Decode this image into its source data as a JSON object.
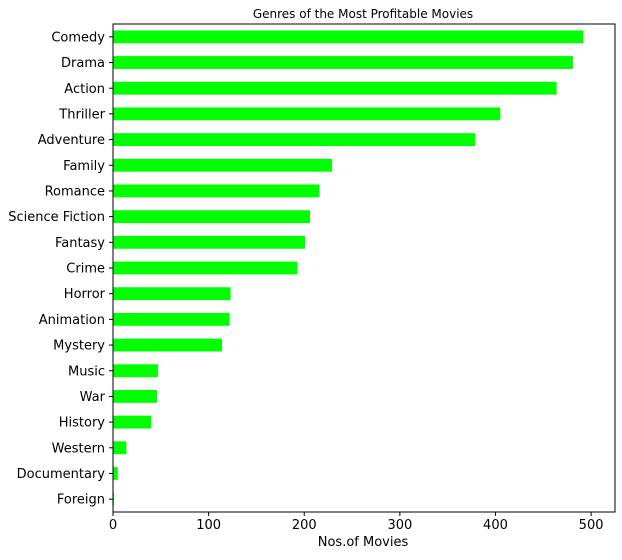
{
  "chart_data": {
    "type": "bar",
    "orientation": "horizontal",
    "title": "Genres of the Most Profitable Movies",
    "xlabel": "Nos.of Movies",
    "ylabel": "",
    "xlim": [
      0,
      525
    ],
    "xticks": [
      0,
      100,
      200,
      300,
      400,
      500
    ],
    "grid": false,
    "legend": "none",
    "bar_color": "#00ff00",
    "categories": [
      "Comedy",
      "Drama",
      "Action",
      "Thriller",
      "Adventure",
      "Family",
      "Romance",
      "Science Fiction",
      "Fantasy",
      "Crime",
      "Horror",
      "Animation",
      "Mystery",
      "Music",
      "War",
      "History",
      "Western",
      "Documentary",
      "Foreign"
    ],
    "values": [
      492,
      481,
      464,
      405,
      379,
      229,
      216,
      206,
      201,
      193,
      123,
      122,
      114,
      47,
      46,
      40,
      14,
      5,
      1
    ]
  }
}
